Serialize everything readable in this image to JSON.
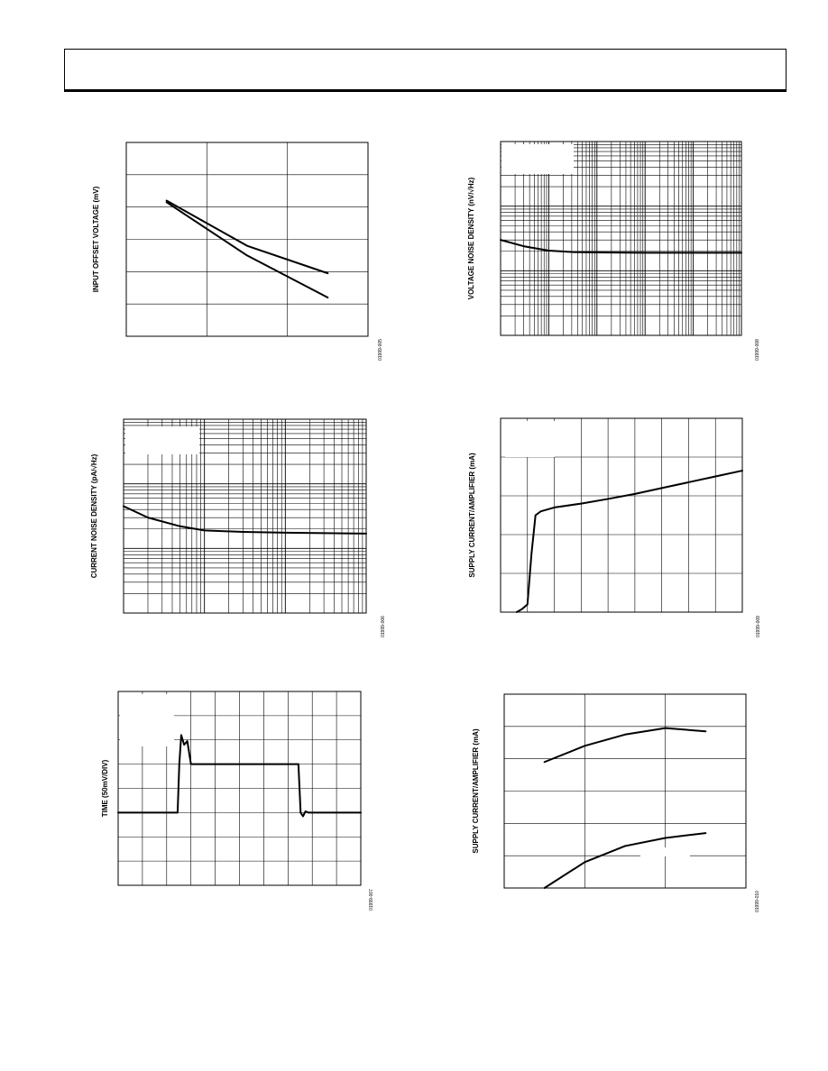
{
  "chart_data": [
    {
      "type": "line",
      "ylabel": "INPUT OFFSET VOLTAGE (mV)",
      "figure_id": "01999-005",
      "xlim": [
        0,
        3
      ],
      "ylim": [
        0,
        6
      ],
      "grid": true,
      "series": [
        {
          "x": [
            0.5,
            1.5,
            2.5
          ],
          "y": [
            4.2,
            2.8,
            1.95
          ]
        },
        {
          "x": [
            0.5,
            1.5,
            2.5
          ],
          "y": [
            4.15,
            2.5,
            1.2
          ]
        }
      ]
    },
    {
      "type": "line",
      "ylabel": "VOLTAGE NOISE DENSITY (nV/√Hz)",
      "figure_id": "01999-008",
      "xscale": "log",
      "yscale": "log",
      "xlim": [
        1,
        100000
      ],
      "ylim": [
        1,
        1000
      ],
      "grid": true,
      "series": [
        {
          "x": [
            1,
            3,
            10,
            30,
            100,
            1000,
            10000,
            100000
          ],
          "y": [
            30,
            24,
            20.5,
            19.5,
            19.2,
            19,
            19,
            19
          ]
        }
      ]
    },
    {
      "type": "line",
      "ylabel": "CURRENT NOISE DENSITY (pA/√Hz)",
      "figure_id": "01999-006",
      "xscale": "log",
      "yscale": "log",
      "xlim": [
        1,
        1000
      ],
      "ylim": [
        0.1,
        100
      ],
      "grid": true,
      "series": [
        {
          "x": [
            1,
            2,
            5,
            10,
            30,
            100,
            1000
          ],
          "y": [
            4.5,
            3.0,
            2.2,
            1.9,
            1.8,
            1.75,
            1.7
          ]
        }
      ]
    },
    {
      "type": "line",
      "ylabel": "SUPPLY CURRENT/AMPLIFIER (mA)",
      "figure_id": "01999-009",
      "xlim": [
        0,
        9
      ],
      "ylim": [
        0,
        5
      ],
      "grid": true,
      "series": [
        {
          "x": [
            0.6,
            0.8,
            1.0,
            1.15,
            1.3,
            1.5,
            2,
            3,
            4,
            5,
            6,
            7,
            8,
            9
          ],
          "y": [
            0,
            0.08,
            0.2,
            1.5,
            2.5,
            2.6,
            2.7,
            2.8,
            2.92,
            3.05,
            3.2,
            3.35,
            3.5,
            3.65
          ]
        }
      ]
    },
    {
      "type": "line",
      "ylabel": "TIME (50mV/DIV)",
      "figure_id": "01999-007",
      "xlim": [
        0,
        10
      ],
      "ylim": [
        0,
        8
      ],
      "grid": true,
      "series": [
        {
          "x": [
            0,
            2.45,
            2.52,
            2.6,
            2.72,
            2.85,
            3.0,
            7.35,
            7.43,
            7.52,
            7.62,
            7.72,
            7.85,
            10
          ],
          "y": [
            3,
            3,
            5,
            6.2,
            5.8,
            5.95,
            5,
            5,
            5,
            3,
            2.85,
            3.05,
            3,
            3
          ]
        }
      ]
    },
    {
      "type": "line",
      "ylabel": "SUPPLY CURRENT/AMPLIFIER (mA)",
      "figure_id": "01999-010",
      "xlim": [
        0,
        3
      ],
      "ylim": [
        0,
        6
      ],
      "grid": true,
      "series": [
        {
          "x": [
            0.5,
            1.0,
            1.5,
            2.0,
            2.5
          ],
          "y": [
            3.9,
            4.4,
            4.75,
            4.95,
            4.85
          ]
        },
        {
          "x": [
            0.5,
            1.0,
            1.5,
            2.0,
            2.5
          ],
          "y": [
            0,
            0.8,
            1.3,
            1.55,
            1.7
          ]
        }
      ]
    }
  ]
}
